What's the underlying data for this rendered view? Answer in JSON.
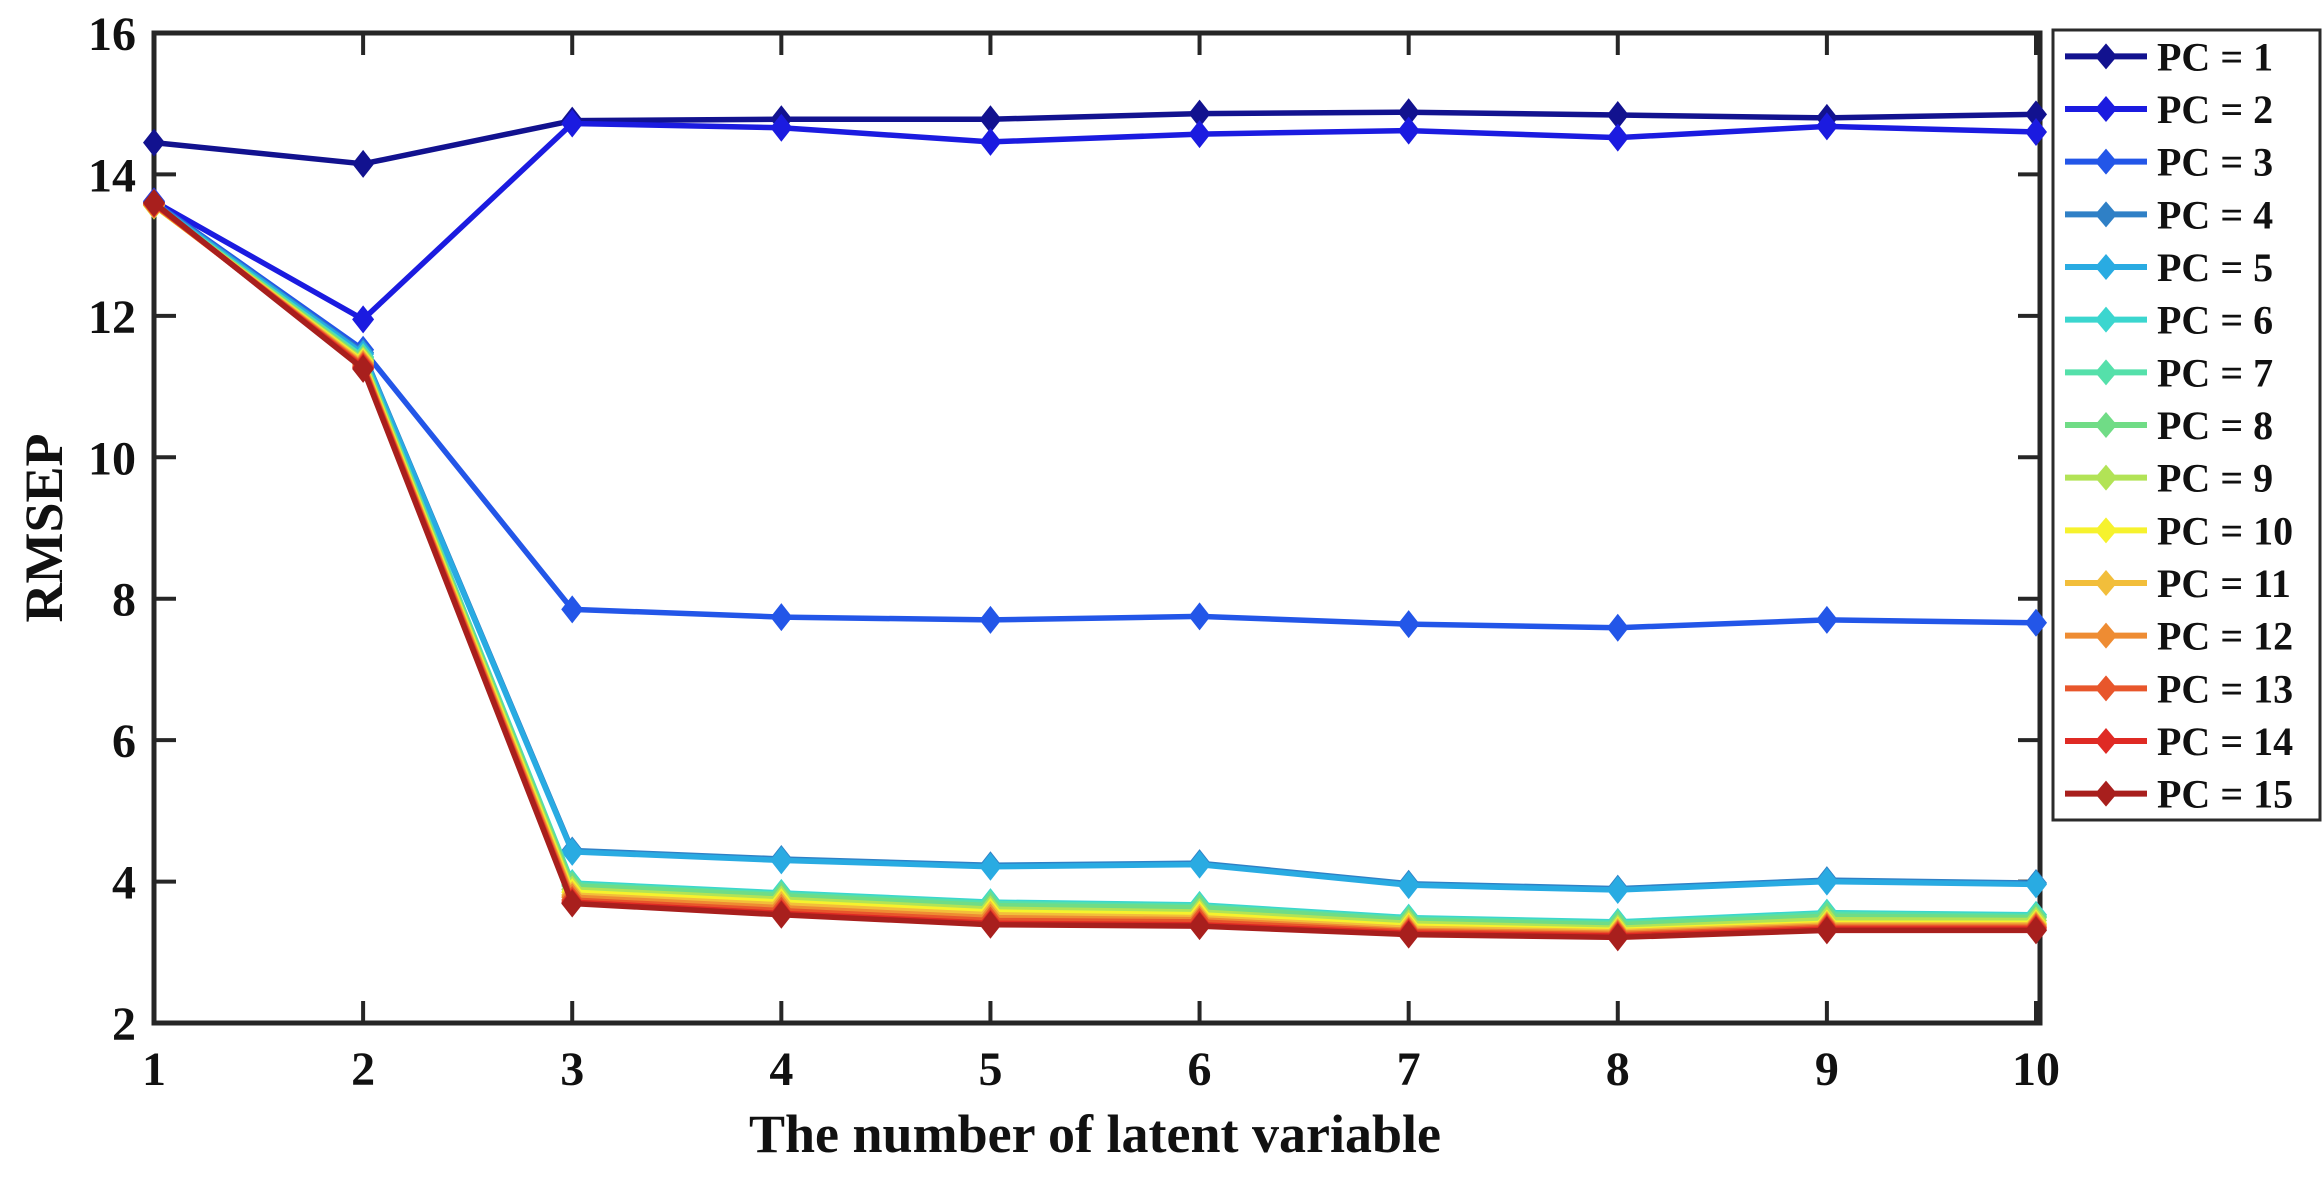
{
  "figure": {
    "background": "#ffffff",
    "axis_color": "#262626",
    "text_color": "#111111"
  },
  "chart_data": {
    "type": "line",
    "title": "",
    "xlabel": "The number of latent variable",
    "ylabel": "RMSEP",
    "x": [
      1,
      2,
      3,
      4,
      5,
      6,
      7,
      8,
      9,
      10
    ],
    "xlim": [
      1,
      10
    ],
    "ylim": [
      2,
      16
    ],
    "xticks": [
      1,
      2,
      3,
      4,
      5,
      6,
      7,
      8,
      9,
      10
    ],
    "yticks": [
      2,
      4,
      6,
      8,
      10,
      12,
      14,
      16
    ],
    "grid": false,
    "marker": "diamond",
    "legend_position": "outside-right",
    "series": [
      {
        "name": "PC = 1",
        "color": "#12128F",
        "values": [
          14.45,
          14.15,
          14.76,
          14.78,
          14.78,
          14.86,
          14.88,
          14.84,
          14.8,
          14.85
        ]
      },
      {
        "name": "PC = 2",
        "color": "#1B1BE0",
        "values": [
          13.62,
          11.95,
          14.72,
          14.66,
          14.46,
          14.57,
          14.62,
          14.52,
          14.68,
          14.6
        ]
      },
      {
        "name": "PC = 3",
        "color": "#2356E8",
        "values": [
          13.61,
          11.52,
          7.85,
          7.74,
          7.7,
          7.75,
          7.64,
          7.59,
          7.7,
          7.66
        ]
      },
      {
        "name": "PC = 4",
        "color": "#2F80C6",
        "values": [
          13.6,
          11.48,
          4.44,
          4.32,
          4.23,
          4.26,
          3.97,
          3.9,
          4.02,
          3.98
        ]
      },
      {
        "name": "PC = 5",
        "color": "#29ABE2",
        "values": [
          13.59,
          11.46,
          4.42,
          4.3,
          4.21,
          4.24,
          3.95,
          3.88,
          4.0,
          3.96
        ]
      },
      {
        "name": "PC = 6",
        "color": "#3BD6CF",
        "values": [
          13.57,
          11.42,
          3.98,
          3.84,
          3.71,
          3.67,
          3.49,
          3.43,
          3.56,
          3.53
        ]
      },
      {
        "name": "PC = 7",
        "color": "#55E0AA",
        "values": [
          13.57,
          11.41,
          3.96,
          3.82,
          3.69,
          3.65,
          3.47,
          3.41,
          3.54,
          3.51
        ]
      },
      {
        "name": "PC = 8",
        "color": "#70DC86",
        "values": [
          13.56,
          11.39,
          3.94,
          3.8,
          3.66,
          3.63,
          3.45,
          3.39,
          3.51,
          3.49
        ]
      },
      {
        "name": "PC = 9",
        "color": "#B2E356",
        "values": [
          13.56,
          11.37,
          3.89,
          3.75,
          3.61,
          3.57,
          3.41,
          3.34,
          3.46,
          3.45
        ]
      },
      {
        "name": "PC = 10",
        "color": "#F6F22D",
        "values": [
          13.56,
          11.35,
          3.85,
          3.71,
          3.57,
          3.53,
          3.37,
          3.31,
          3.41,
          3.41
        ]
      },
      {
        "name": "PC = 11",
        "color": "#F2BE3B",
        "values": [
          13.57,
          11.33,
          3.81,
          3.67,
          3.53,
          3.49,
          3.34,
          3.29,
          3.39,
          3.39
        ]
      },
      {
        "name": "PC = 12",
        "color": "#EE8C33",
        "values": [
          13.57,
          11.31,
          3.78,
          3.63,
          3.49,
          3.46,
          3.31,
          3.27,
          3.37,
          3.37
        ]
      },
      {
        "name": "PC = 13",
        "color": "#E8562B",
        "values": [
          13.58,
          11.29,
          3.74,
          3.59,
          3.45,
          3.43,
          3.29,
          3.25,
          3.35,
          3.35
        ]
      },
      {
        "name": "PC = 14",
        "color": "#DF2A24",
        "values": [
          13.59,
          11.27,
          3.71,
          3.55,
          3.41,
          3.39,
          3.27,
          3.23,
          3.33,
          3.33
        ]
      },
      {
        "name": "PC = 15",
        "color": "#A81F1D",
        "values": [
          13.6,
          11.25,
          3.69,
          3.53,
          3.39,
          3.37,
          3.25,
          3.21,
          3.31,
          3.31
        ]
      }
    ]
  }
}
